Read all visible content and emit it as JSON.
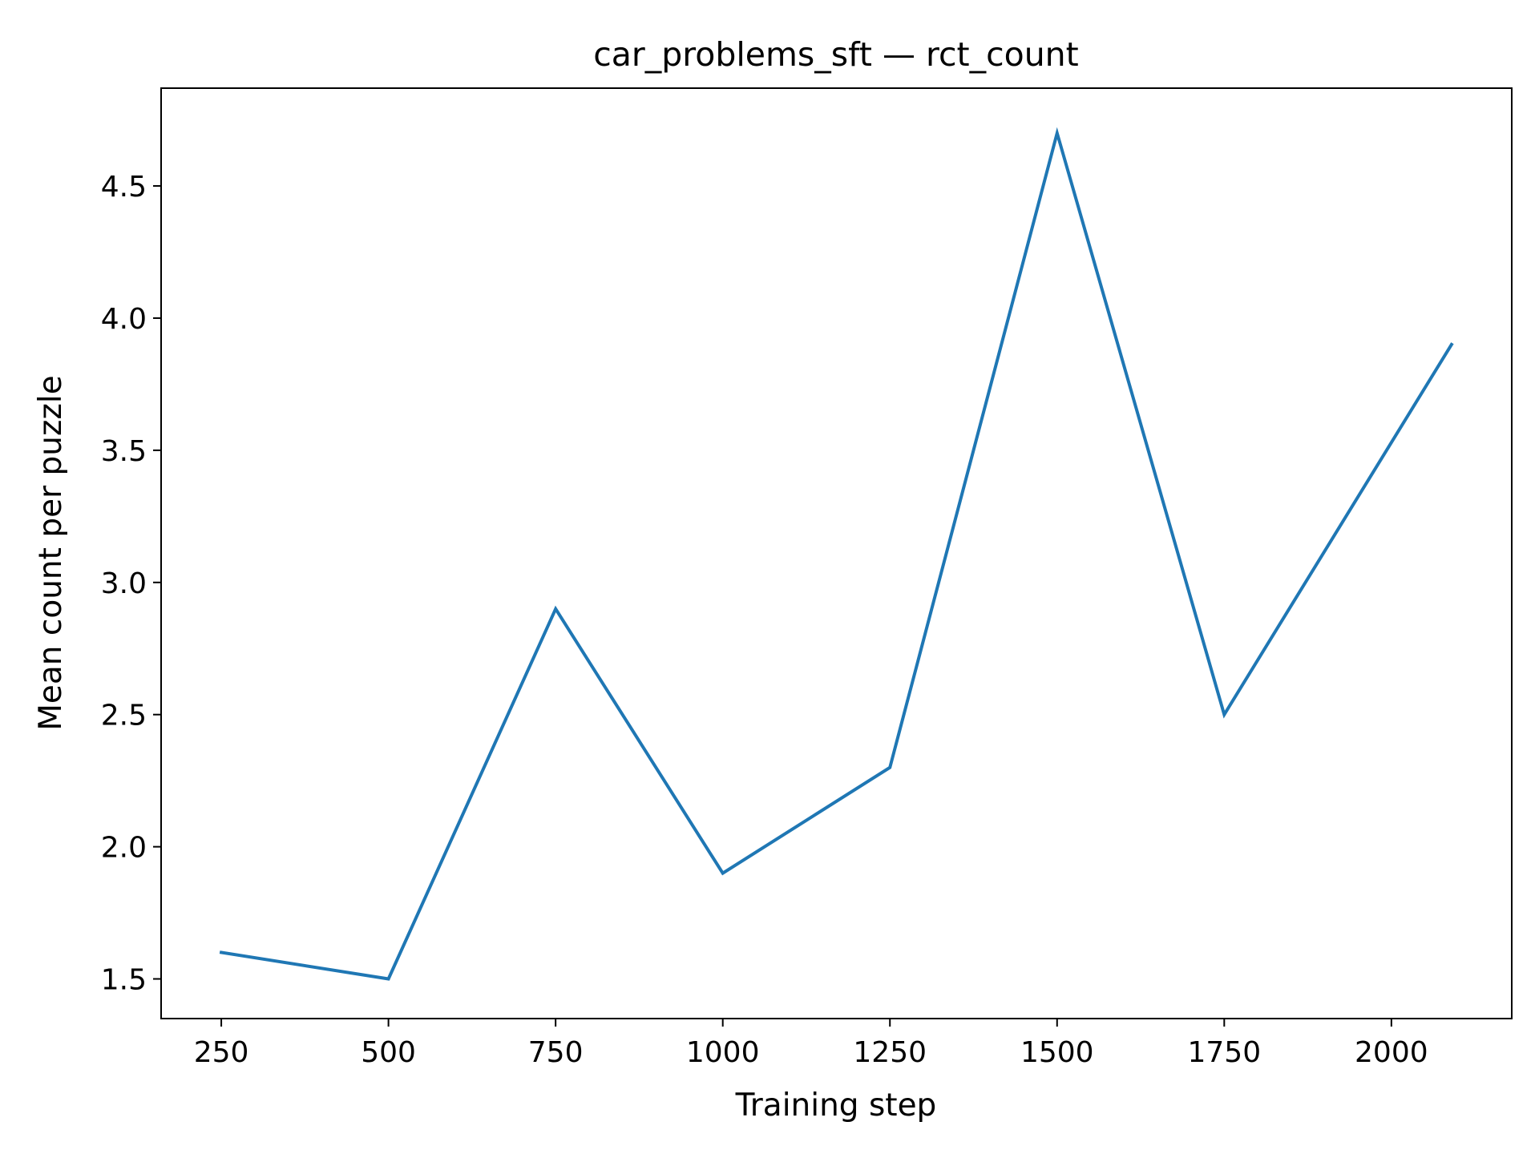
{
  "chart_data": {
    "type": "line",
    "title": "car_problems_sft — rct_count",
    "xlabel": "Training step",
    "ylabel": "Mean count per puzzle",
    "xlim": [
      160,
      2180
    ],
    "ylim": [
      1.35,
      4.87
    ],
    "x_ticks": [
      250,
      500,
      750,
      1000,
      1250,
      1500,
      1750,
      2000
    ],
    "x_tick_labels": [
      "250",
      "500",
      "750",
      "1000",
      "1250",
      "1500",
      "1750",
      "2000"
    ],
    "y_ticks": [
      1.5,
      2.0,
      2.5,
      3.0,
      3.5,
      4.0,
      4.5
    ],
    "y_tick_labels": [
      "1.5",
      "2.0",
      "2.5",
      "3.0",
      "3.5",
      "4.0",
      "4.5"
    ],
    "grid": false,
    "series": [
      {
        "color": "#1f77b4",
        "x": [
          250,
          500,
          750,
          1000,
          1250,
          1500,
          1750,
          2090
        ],
        "y": [
          1.6,
          1.5,
          2.9,
          1.9,
          2.3,
          4.7,
          2.5,
          3.9
        ]
      }
    ]
  }
}
